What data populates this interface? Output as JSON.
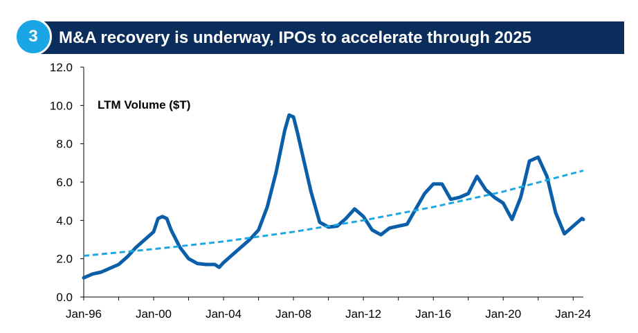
{
  "header": {
    "section_number": "3",
    "title": "M&A recovery is underway, IPOs to accelerate through 2025"
  },
  "colors": {
    "header_bg": "#0b2d5b",
    "badge": "#1aa6e4",
    "series_line": "#0b5ea8",
    "trend_line": "#1ea8df"
  },
  "chart_data": {
    "type": "line",
    "annotation": "LTM Volume ($T)",
    "x_tick_labels": [
      "Jan-96",
      "Jan-00",
      "Jan-04",
      "Jan-08",
      "Jan-12",
      "Jan-16",
      "Jan-20",
      "Jan-24"
    ],
    "y_tick_labels": [
      "0.0",
      "2.0",
      "4.0",
      "6.0",
      "8.0",
      "10.0",
      "12.0"
    ],
    "ylim": [
      0,
      12
    ],
    "xlim": [
      "1996-01",
      "2024-08"
    ],
    "grid": false,
    "legend": "none",
    "series": [
      {
        "style": "solid",
        "points": [
          [
            "1996-01",
            1.0
          ],
          [
            "1996-07",
            1.2
          ],
          [
            "1997-01",
            1.3
          ],
          [
            "1997-07",
            1.5
          ],
          [
            "1998-01",
            1.7
          ],
          [
            "1998-07",
            2.1
          ],
          [
            "1999-01",
            2.6
          ],
          [
            "1999-07",
            3.0
          ],
          [
            "2000-01",
            3.4
          ],
          [
            "2000-04",
            4.1
          ],
          [
            "2000-07",
            4.2
          ],
          [
            "2000-10",
            4.1
          ],
          [
            "2001-01",
            3.5
          ],
          [
            "2001-07",
            2.6
          ],
          [
            "2002-01",
            2.0
          ],
          [
            "2002-07",
            1.75
          ],
          [
            "2003-01",
            1.7
          ],
          [
            "2003-07",
            1.7
          ],
          [
            "2003-10",
            1.55
          ],
          [
            "2004-01",
            1.8
          ],
          [
            "2004-07",
            2.2
          ],
          [
            "2005-01",
            2.6
          ],
          [
            "2005-07",
            3.0
          ],
          [
            "2006-01",
            3.5
          ],
          [
            "2006-07",
            4.7
          ],
          [
            "2007-01",
            6.5
          ],
          [
            "2007-07",
            8.7
          ],
          [
            "2007-10",
            9.5
          ],
          [
            "2008-01",
            9.4
          ],
          [
            "2008-04",
            8.5
          ],
          [
            "2008-07",
            7.5
          ],
          [
            "2009-01",
            5.5
          ],
          [
            "2009-07",
            3.9
          ],
          [
            "2010-01",
            3.65
          ],
          [
            "2010-07",
            3.7
          ],
          [
            "2011-01",
            4.1
          ],
          [
            "2011-07",
            4.6
          ],
          [
            "2012-01",
            4.2
          ],
          [
            "2012-07",
            3.5
          ],
          [
            "2013-01",
            3.25
          ],
          [
            "2013-07",
            3.6
          ],
          [
            "2014-01",
            3.7
          ],
          [
            "2014-07",
            3.8
          ],
          [
            "2015-01",
            4.6
          ],
          [
            "2015-07",
            5.4
          ],
          [
            "2016-01",
            5.9
          ],
          [
            "2016-07",
            5.9
          ],
          [
            "2017-01",
            5.1
          ],
          [
            "2017-07",
            5.2
          ],
          [
            "2018-01",
            5.4
          ],
          [
            "2018-07",
            6.3
          ],
          [
            "2019-01",
            5.6
          ],
          [
            "2019-07",
            5.2
          ],
          [
            "2020-01",
            4.9
          ],
          [
            "2020-07",
            4.05
          ],
          [
            "2021-01",
            5.2
          ],
          [
            "2021-07",
            7.1
          ],
          [
            "2022-01",
            7.3
          ],
          [
            "2022-07",
            6.3
          ],
          [
            "2023-01",
            4.4
          ],
          [
            "2023-07",
            3.3
          ],
          [
            "2024-01",
            3.7
          ],
          [
            "2024-07",
            4.1
          ],
          [
            "2024-08",
            4.05
          ]
        ]
      },
      {
        "style": "dashed",
        "kind": "trend",
        "points": [
          [
            "1996-01",
            2.15
          ],
          [
            "2000-01",
            2.5
          ],
          [
            "2004-01",
            2.9
          ],
          [
            "2008-01",
            3.4
          ],
          [
            "2012-01",
            4.0
          ],
          [
            "2016-01",
            4.7
          ],
          [
            "2020-01",
            5.5
          ],
          [
            "2024-08",
            6.6
          ]
        ]
      }
    ]
  }
}
